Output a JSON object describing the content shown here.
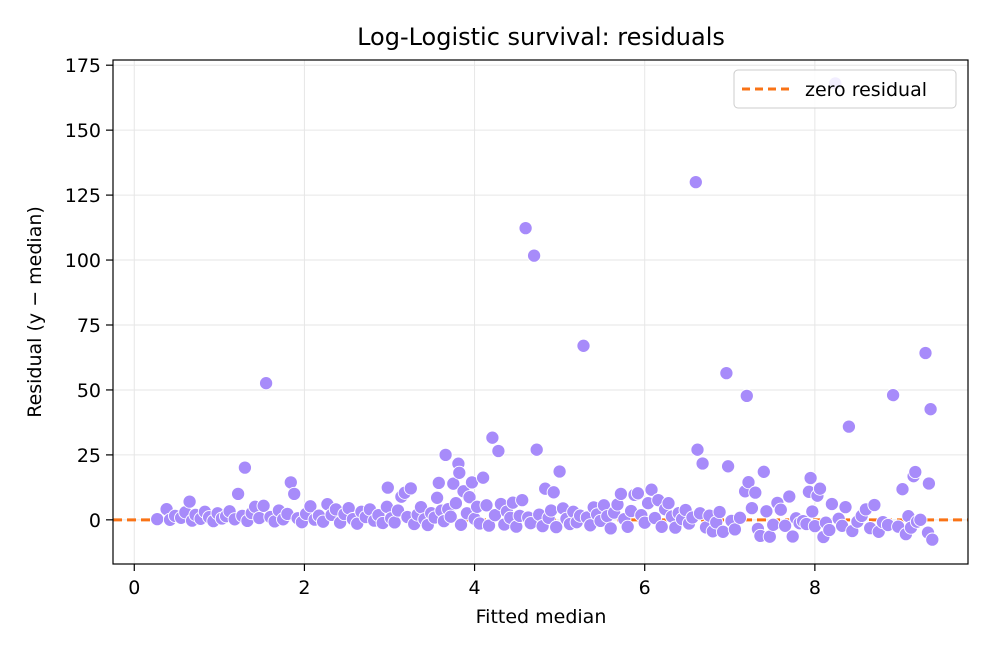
{
  "chart_data": {
    "type": "scatter",
    "title": "Log-Logistic survival: residuals",
    "xlabel": "Fitted median",
    "ylabel": "Residual (y − median)",
    "xlim": [
      -0.25,
      9.8
    ],
    "ylim": [
      -17,
      177
    ],
    "xticks": [
      0,
      2,
      4,
      6,
      8
    ],
    "yticks": [
      0,
      25,
      50,
      75,
      100,
      125,
      150,
      175
    ],
    "grid": true,
    "legend": {
      "position": "top-right",
      "entries": [
        "zero residual"
      ]
    },
    "colors": {
      "points": "#a78bfa",
      "point_edge": "#ffffff",
      "reference": "#f97316"
    },
    "reference_line": {
      "y": 0,
      "style": "dashed",
      "label": "zero residual"
    },
    "series": [
      {
        "points": [
          [
            0.27,
            0.3
          ],
          [
            0.38,
            4.1
          ],
          [
            0.42,
            0.0
          ],
          [
            0.48,
            1.5
          ],
          [
            0.55,
            0.8
          ],
          [
            0.6,
            2.9
          ],
          [
            0.65,
            7.0
          ],
          [
            0.68,
            -0.3
          ],
          [
            0.72,
            1.9
          ],
          [
            0.78,
            0.4
          ],
          [
            0.83,
            3.1
          ],
          [
            0.88,
            1.0
          ],
          [
            0.93,
            -0.5
          ],
          [
            0.98,
            2.5
          ],
          [
            1.03,
            0.5
          ],
          [
            1.08,
            1.4
          ],
          [
            1.12,
            3.3
          ],
          [
            1.18,
            0.2
          ],
          [
            1.22,
            10.0
          ],
          [
            1.27,
            1.5
          ],
          [
            1.3,
            20.1
          ],
          [
            1.33,
            -0.4
          ],
          [
            1.38,
            2.6
          ],
          [
            1.42,
            5.0
          ],
          [
            1.47,
            0.7
          ],
          [
            1.52,
            5.4
          ],
          [
            1.55,
            52.6
          ],
          [
            1.6,
            1.1
          ],
          [
            1.65,
            -0.6
          ],
          [
            1.7,
            3.6
          ],
          [
            1.75,
            0.2
          ],
          [
            1.8,
            2.3
          ],
          [
            1.84,
            14.4
          ],
          [
            1.88,
            10.0
          ],
          [
            1.92,
            0.6
          ],
          [
            1.97,
            -0.9
          ],
          [
            2.02,
            2.3
          ],
          [
            2.07,
            5.2
          ],
          [
            2.12,
            0.1
          ],
          [
            2.17,
            1.6
          ],
          [
            2.22,
            -0.7
          ],
          [
            2.27,
            6.0
          ],
          [
            2.32,
            1.9
          ],
          [
            2.37,
            4.0
          ],
          [
            2.42,
            -1.1
          ],
          [
            2.47,
            2.2
          ],
          [
            2.52,
            4.5
          ],
          [
            2.57,
            0.3
          ],
          [
            2.62,
            -1.5
          ],
          [
            2.67,
            3.1
          ],
          [
            2.72,
            1.1
          ],
          [
            2.77,
            4.0
          ],
          [
            2.82,
            -0.3
          ],
          [
            2.87,
            1.8
          ],
          [
            2.92,
            -1.2
          ],
          [
            2.97,
            5.0
          ],
          [
            2.98,
            12.4
          ],
          [
            3.02,
            0.6
          ],
          [
            3.06,
            -1.0
          ],
          [
            3.1,
            3.6
          ],
          [
            3.14,
            8.9
          ],
          [
            3.18,
            10.4
          ],
          [
            3.21,
            1.1
          ],
          [
            3.25,
            12.1
          ],
          [
            3.29,
            -1.6
          ],
          [
            3.33,
            2.0
          ],
          [
            3.37,
            4.9
          ],
          [
            3.41,
            0.2
          ],
          [
            3.45,
            -2.0
          ],
          [
            3.49,
            2.6
          ],
          [
            3.53,
            0.9
          ],
          [
            3.56,
            8.5
          ],
          [
            3.58,
            14.2
          ],
          [
            3.61,
            3.5
          ],
          [
            3.64,
            -0.5
          ],
          [
            3.66,
            25.0
          ],
          [
            3.69,
            4.1
          ],
          [
            3.72,
            1.2
          ],
          [
            3.75,
            13.9
          ],
          [
            3.78,
            6.4
          ],
          [
            3.81,
            21.6
          ],
          [
            3.82,
            18.1
          ],
          [
            3.84,
            -1.9
          ],
          [
            3.87,
            11.0
          ],
          [
            3.91,
            2.5
          ],
          [
            3.94,
            8.7
          ],
          [
            3.97,
            14.4
          ],
          [
            4.0,
            0.4
          ],
          [
            4.03,
            5.0
          ],
          [
            4.06,
            -1.4
          ],
          [
            4.1,
            16.2
          ],
          [
            4.14,
            5.6
          ],
          [
            4.17,
            -2.2
          ],
          [
            4.21,
            31.6
          ],
          [
            4.24,
            1.8
          ],
          [
            4.28,
            26.5
          ],
          [
            4.31,
            6.1
          ],
          [
            4.35,
            -1.8
          ],
          [
            4.38,
            3.2
          ],
          [
            4.42,
            0.8
          ],
          [
            4.45,
            6.6
          ],
          [
            4.49,
            -2.6
          ],
          [
            4.53,
            1.5
          ],
          [
            4.56,
            7.6
          ],
          [
            4.6,
            112.3
          ],
          [
            4.63,
            0.9
          ],
          [
            4.66,
            -1.3
          ],
          [
            4.7,
            101.7
          ],
          [
            4.73,
            27.0
          ],
          [
            4.76,
            2.0
          ],
          [
            4.8,
            -2.4
          ],
          [
            4.83,
            12.0
          ],
          [
            4.87,
            0.8
          ],
          [
            4.9,
            3.6
          ],
          [
            4.93,
            10.6
          ],
          [
            4.96,
            -2.8
          ],
          [
            5.0,
            18.6
          ],
          [
            5.04,
            4.4
          ],
          [
            5.08,
            0.4
          ],
          [
            5.12,
            -1.6
          ],
          [
            5.16,
            3.1
          ],
          [
            5.2,
            -0.9
          ],
          [
            5.24,
            1.6
          ],
          [
            5.28,
            67.0
          ],
          [
            5.32,
            0.9
          ],
          [
            5.36,
            -2.1
          ],
          [
            5.4,
            4.8
          ],
          [
            5.44,
            2.1
          ],
          [
            5.48,
            -0.4
          ],
          [
            5.52,
            5.6
          ],
          [
            5.56,
            1.4
          ],
          [
            5.6,
            -3.3
          ],
          [
            5.64,
            2.8
          ],
          [
            5.68,
            5.9
          ],
          [
            5.72,
            10.0
          ],
          [
            5.76,
            0.3
          ],
          [
            5.8,
            -2.7
          ],
          [
            5.84,
            3.4
          ],
          [
            5.88,
            9.6
          ],
          [
            5.92,
            10.2
          ],
          [
            5.96,
            1.8
          ],
          [
            6.0,
            -1.1
          ],
          [
            6.04,
            6.4
          ],
          [
            6.08,
            11.6
          ],
          [
            6.12,
            0.7
          ],
          [
            6.16,
            7.6
          ],
          [
            6.2,
            -2.7
          ],
          [
            6.24,
            4.1
          ],
          [
            6.28,
            6.4
          ],
          [
            6.32,
            1.3
          ],
          [
            6.36,
            -3.0
          ],
          [
            6.4,
            2.6
          ],
          [
            6.44,
            0.3
          ],
          [
            6.48,
            3.8
          ],
          [
            6.52,
            -1.4
          ],
          [
            6.56,
            0.9
          ],
          [
            6.6,
            130.0
          ],
          [
            6.62,
            27.0
          ],
          [
            6.65,
            2.5
          ],
          [
            6.68,
            21.7
          ],
          [
            6.72,
            -2.9
          ],
          [
            6.76,
            1.6
          ],
          [
            6.8,
            -4.4
          ],
          [
            6.84,
            -1.0
          ],
          [
            6.88,
            3.0
          ],
          [
            6.92,
            -4.6
          ],
          [
            6.96,
            56.5
          ],
          [
            6.98,
            20.6
          ],
          [
            7.02,
            -0.4
          ],
          [
            7.06,
            -3.7
          ],
          [
            7.12,
            0.8
          ],
          [
            7.18,
            11.0
          ],
          [
            7.2,
            47.7
          ],
          [
            7.22,
            14.5
          ],
          [
            7.26,
            4.5
          ],
          [
            7.3,
            10.5
          ],
          [
            7.33,
            -3.5
          ],
          [
            7.36,
            -6.2
          ],
          [
            7.4,
            18.5
          ],
          [
            7.43,
            3.3
          ],
          [
            7.47,
            -6.5
          ],
          [
            7.51,
            -1.9
          ],
          [
            7.56,
            6.5
          ],
          [
            7.6,
            3.9
          ],
          [
            7.65,
            -2.3
          ],
          [
            7.7,
            9.0
          ],
          [
            7.74,
            -6.4
          ],
          [
            7.78,
            0.6
          ],
          [
            7.82,
            -1.3
          ],
          [
            7.86,
            -0.5
          ],
          [
            7.9,
            -1.6
          ],
          [
            7.93,
            10.8
          ],
          [
            7.95,
            16.1
          ],
          [
            7.97,
            3.2
          ],
          [
            8.0,
            -2.4
          ],
          [
            8.03,
            9.3
          ],
          [
            8.06,
            12.0
          ],
          [
            8.1,
            -6.6
          ],
          [
            8.13,
            -1.1
          ],
          [
            8.17,
            -3.9
          ],
          [
            8.2,
            6.1
          ],
          [
            8.24,
            168.0
          ],
          [
            8.28,
            0.4
          ],
          [
            8.32,
            -2.3
          ],
          [
            8.36,
            4.9
          ],
          [
            8.4,
            35.9
          ],
          [
            8.44,
            -4.3
          ],
          [
            8.5,
            -0.7
          ],
          [
            8.55,
            1.5
          ],
          [
            8.6,
            4.0
          ],
          [
            8.65,
            -3.2
          ],
          [
            8.7,
            5.7
          ],
          [
            8.75,
            -4.6
          ],
          [
            8.8,
            -0.9
          ],
          [
            8.86,
            -2.0
          ],
          [
            8.92,
            48.0
          ],
          [
            8.98,
            -2.6
          ],
          [
            9.03,
            11.8
          ],
          [
            9.07,
            -5.5
          ],
          [
            9.1,
            1.4
          ],
          [
            9.13,
            -3.0
          ],
          [
            9.16,
            16.8
          ],
          [
            9.18,
            18.4
          ],
          [
            9.2,
            -0.7
          ],
          [
            9.24,
            0.0
          ],
          [
            9.3,
            64.2
          ],
          [
            9.33,
            -4.9
          ],
          [
            9.34,
            14.0
          ],
          [
            9.36,
            42.6
          ],
          [
            9.38,
            -7.6
          ]
        ]
      }
    ]
  }
}
